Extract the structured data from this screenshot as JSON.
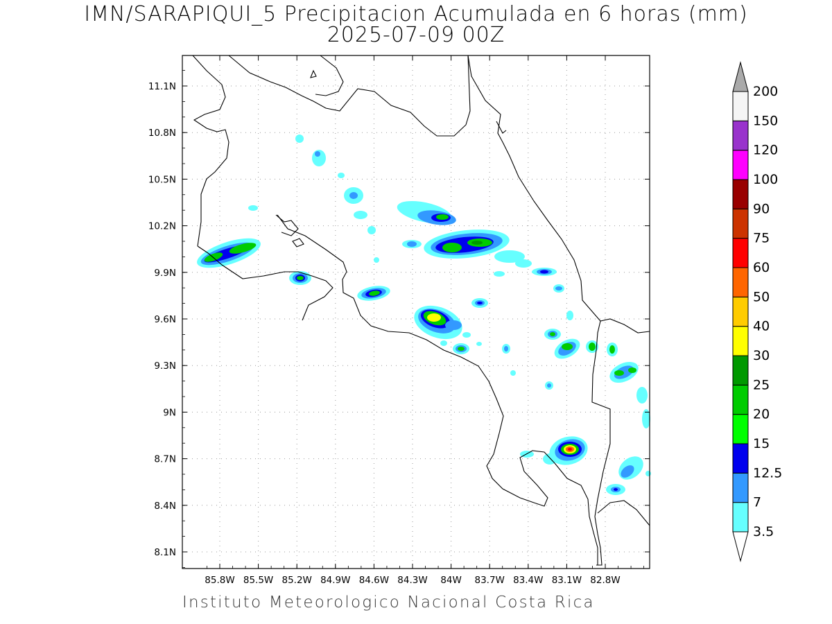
{
  "map": {
    "title": "IMN/SARAPIQUI_5 Precipitacion Acumulada en 6 horas (mm)",
    "subtitle": "2025-07-09 00Z",
    "footer": "Instituto Meteorologico Nacional Costa Rica",
    "lon_range": [
      -86.05,
      -82.55
    ],
    "lat_range": [
      8.0,
      11.3
    ],
    "lon_ticks": [
      "85.8W",
      "85.5W",
      "85.2W",
      "84.9W",
      "84.6W",
      "84.3W",
      "84W",
      "83.7W",
      "83.4W",
      "83.1W",
      "82.8W"
    ],
    "lat_ticks": [
      "11.1N",
      "10.8N",
      "10.5N",
      "10.2N",
      "9.9N",
      "9.6N",
      "9.3N",
      "9N",
      "8.7N",
      "8.4N",
      "8.1N"
    ],
    "grid": true
  },
  "colorbar": {
    "levels": [
      "3.5",
      "7",
      "12.5",
      "15",
      "20",
      "25",
      "30",
      "40",
      "50",
      "60",
      "75",
      "90",
      "100",
      "120",
      "150",
      "200"
    ],
    "colors": [
      "#66ffff",
      "#3399ff",
      "#0000ee",
      "#00ff00",
      "#00cc00",
      "#009900",
      "#ffff00",
      "#ffcc00",
      "#ff6600",
      "#ff0000",
      "#cc3300",
      "#990000",
      "#ff00ff",
      "#9933cc",
      "#f5f5f5",
      "#aaaaaa"
    ]
  }
}
